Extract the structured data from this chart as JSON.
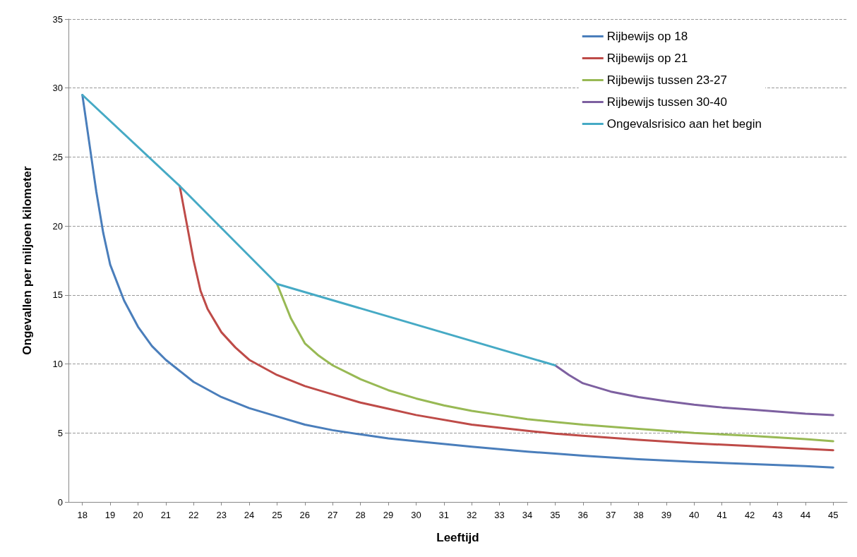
{
  "chart_data": {
    "type": "line",
    "xlabel": "Leeftijd",
    "ylabel": "Ongevallen per miljoen kilometer",
    "xlim": [
      17.5,
      45.5
    ],
    "xticks": [
      18,
      19,
      20,
      21,
      22,
      23,
      24,
      25,
      26,
      27,
      28,
      29,
      30,
      31,
      32,
      33,
      34,
      35,
      36,
      37,
      38,
      39,
      40,
      41,
      42,
      43,
      44,
      45
    ],
    "ylim": [
      0,
      35
    ],
    "yticks": [
      0,
      5,
      10,
      15,
      20,
      25,
      30,
      35
    ],
    "grid": "y",
    "legend": "top right",
    "marker": "none",
    "line_style": "solid",
    "series": [
      {
        "name": "Rijbewijs op 18",
        "color": "#4a7ebb",
        "x": [
          18,
          18.25,
          18.5,
          18.75,
          19,
          19.5,
          20,
          20.5,
          21,
          22,
          23,
          24,
          25,
          26,
          27,
          28,
          29,
          30,
          32,
          34,
          35,
          36,
          38,
          40,
          42,
          44,
          45
        ],
        "values": [
          29.5,
          26,
          22.5,
          19.5,
          17.2,
          14.6,
          12.7,
          11.3,
          10.3,
          8.7,
          7.6,
          6.8,
          6.2,
          5.6,
          5.2,
          4.9,
          4.6,
          4.4,
          4.0,
          3.65,
          3.5,
          3.35,
          3.1,
          2.9,
          2.75,
          2.6,
          2.5
        ]
      },
      {
        "name": "Rijbewijs op 21",
        "color": "#be4b48",
        "x": [
          21.5,
          22,
          22.25,
          22.5,
          23,
          23.5,
          24,
          25,
          26,
          27,
          28,
          29,
          30,
          32,
          34,
          35,
          36,
          38,
          40,
          42,
          44,
          45
        ],
        "values": [
          22.9,
          17.5,
          15.3,
          14,
          12.3,
          11.2,
          10.3,
          9.2,
          8.4,
          7.8,
          7.2,
          6.75,
          6.3,
          5.6,
          5.15,
          4.95,
          4.8,
          4.5,
          4.25,
          4.05,
          3.85,
          3.75
        ]
      },
      {
        "name": "Rijbewijs tussen 23-27",
        "color": "#98b954",
        "x": [
          25,
          25.5,
          26,
          26.5,
          27,
          28,
          29,
          30,
          31,
          32,
          33,
          34,
          35,
          36,
          38,
          40,
          42,
          44,
          45
        ],
        "values": [
          15.8,
          13.3,
          11.5,
          10.6,
          9.9,
          8.9,
          8.1,
          7.5,
          7.0,
          6.6,
          6.3,
          6.0,
          5.8,
          5.6,
          5.3,
          5.0,
          4.8,
          4.55,
          4.4
        ]
      },
      {
        "name": "Rijbewijs tussen 30-40",
        "color": "#7d60a0",
        "x": [
          35,
          35.5,
          36,
          37,
          38,
          39,
          40,
          41,
          42,
          43,
          44,
          45
        ],
        "values": [
          9.9,
          9.2,
          8.6,
          8.0,
          7.6,
          7.3,
          7.05,
          6.85,
          6.7,
          6.55,
          6.4,
          6.3
        ]
      },
      {
        "name": "Ongevalsrisico aan het begin",
        "color": "#46aac5",
        "x": [
          18,
          21.5,
          25,
          35
        ],
        "values": [
          29.5,
          22.9,
          15.8,
          9.9
        ]
      }
    ]
  }
}
